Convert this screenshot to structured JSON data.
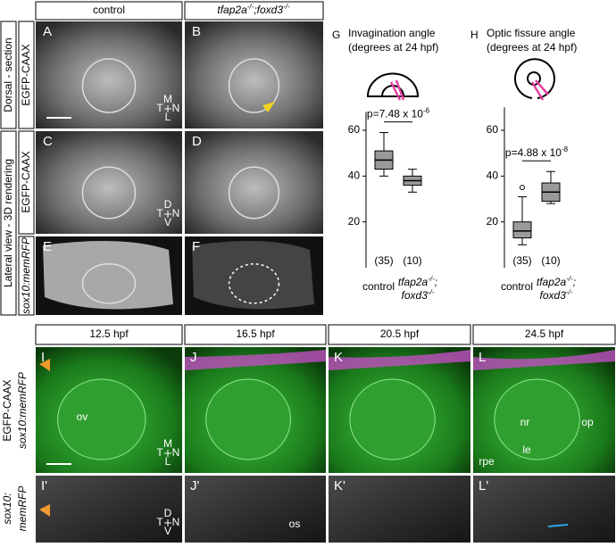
{
  "column_headers": [
    [
      "control"
    ],
    [
      "tfap2a",
      "-/-",
      ";foxd3",
      "-/-"
    ]
  ],
  "row_labels": {
    "group_top": "Dorsal - section",
    "group_lateral": "Lateral view - 3D rendering",
    "marker_a": "EGFP-CAAX",
    "marker_c": "EGFP-CAAX",
    "marker_e": "sox10:memRFP"
  },
  "panels_top": [
    {
      "letter": "A",
      "compass": [
        "M",
        "T",
        "N",
        "L"
      ]
    },
    {
      "letter": "B"
    },
    {
      "letter": "C",
      "compass": [
        "D",
        "T",
        "N",
        "V"
      ]
    },
    {
      "letter": "D"
    },
    {
      "letter": "E"
    },
    {
      "letter": "F"
    }
  ],
  "time_headers": [
    "12.5 hpf",
    "16.5 hpf",
    "20.5 hpf",
    "24.5 hpf"
  ],
  "bottom_labels": {
    "green": "EGFP-CAAX",
    "magenta": "sox10:memRFP",
    "mono_1": "sox10:",
    "mono_2": "memRFP"
  },
  "panels_bottom": [
    {
      "letter": "I",
      "notes": [
        "ov"
      ],
      "compass": [
        "M",
        "T",
        "N",
        "L"
      ]
    },
    {
      "letter": "J"
    },
    {
      "letter": "K"
    },
    {
      "letter": "L",
      "notes": [
        "nr",
        "op",
        "le",
        "rpe"
      ]
    },
    {
      "letter": "I'",
      "compass": [
        "D",
        "T",
        "N",
        "V"
      ]
    },
    {
      "letter": "J'",
      "notes": [
        "os"
      ]
    },
    {
      "letter": "K'"
    },
    {
      "letter": "L'"
    }
  ],
  "chart_data": [
    {
      "type": "box",
      "letter": "G",
      "title": [
        "Invagination angle",
        "(degrees at 24 hpf)"
      ],
      "categories": [
        [
          "control"
        ],
        [
          "tfap2a",
          "-/-",
          ";",
          "foxd3",
          "-/-"
        ]
      ],
      "n_labels": [
        "(35)",
        "(10)"
      ],
      "boxes": [
        {
          "min": 40,
          "q1": 43,
          "median": 47,
          "q3": 51,
          "max": 59
        },
        {
          "min": 33,
          "q1": 36,
          "median": 38,
          "q3": 40,
          "max": 43
        }
      ],
      "p_label": [
        "p=7.48 x 10",
        "-6"
      ],
      "ylim": [
        0,
        68
      ],
      "yticks": [
        20,
        40,
        60
      ],
      "color": "#9a9a9a"
    },
    {
      "type": "box",
      "letter": "H",
      "title": [
        "Optic fissure angle",
        "(degrees at 24 hpf)"
      ],
      "categories": [
        [
          "control"
        ],
        [
          "tfap2a",
          "-/-",
          ";",
          "foxd3",
          "-/-"
        ]
      ],
      "n_labels": [
        "(35)",
        "(10)"
      ],
      "boxes": [
        {
          "min": 10,
          "q1": 13,
          "median": 16,
          "q3": 20,
          "max": 31
        },
        {
          "min": 28,
          "q1": 29,
          "median": 33,
          "q3": 37,
          "max": 42
        }
      ],
      "outliers": [
        [
          35
        ],
        []
      ],
      "p_label": [
        "p=4.88 x 10",
        "-8"
      ],
      "ylim": [
        0,
        70
      ],
      "yticks": [
        20,
        40,
        60
      ],
      "color": "#9a9a9a"
    }
  ]
}
